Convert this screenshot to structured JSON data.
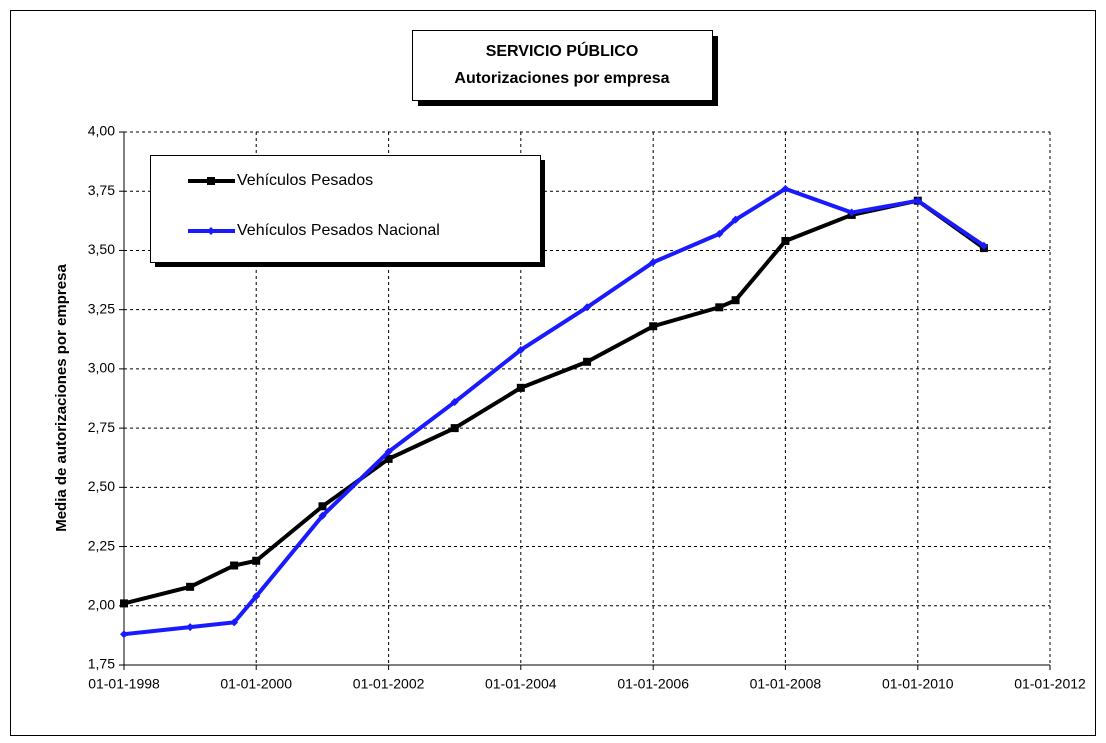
{
  "chart_data": {
    "type": "line",
    "title": [
      "SERVICIO PÚBLICO",
      "Autorizaciones por empresa"
    ],
    "y_label": "Media de autorizaciones por empresa",
    "x": [
      "1998-01-01",
      "1999-01-01",
      "1999-09-01",
      "2000-01-01",
      "2001-01-01",
      "2002-01-01",
      "2003-01-01",
      "2004-01-01",
      "2005-01-01",
      "2006-01-01",
      "2007-01-01",
      "2007-04-01",
      "2008-01-01",
      "2009-01-01",
      "2010-01-01",
      "2011-01-01"
    ],
    "series": [
      {
        "name": "Vehículos Pesados",
        "color": "#000000",
        "values": [
          2.01,
          2.08,
          2.17,
          2.19,
          2.42,
          2.62,
          2.75,
          2.92,
          3.03,
          3.18,
          3.26,
          3.29,
          3.54,
          3.65,
          3.71,
          3.51
        ]
      },
      {
        "name": "Vehículos Pesados Nacional",
        "color": "#1a1aff",
        "values": [
          1.88,
          1.91,
          1.93,
          2.04,
          2.38,
          2.65,
          2.86,
          3.08,
          3.26,
          3.45,
          3.57,
          3.63,
          3.76,
          3.66,
          3.71,
          3.52
        ]
      }
    ],
    "xlim": [
      "1998-01-01",
      "2012-01-01"
    ],
    "xticks": [
      {
        "value": "1998-01-01",
        "label": "01-01-1998"
      },
      {
        "value": "2000-01-01",
        "label": "01-01-2000"
      },
      {
        "value": "2002-01-01",
        "label": "01-01-2002"
      },
      {
        "value": "2004-01-01",
        "label": "01-01-2004"
      },
      {
        "value": "2006-01-01",
        "label": "01-01-2006"
      },
      {
        "value": "2008-01-01",
        "label": "01-01-2008"
      },
      {
        "value": "2010-01-01",
        "label": "01-01-2010"
      },
      {
        "value": "2012-01-01",
        "label": "01-01-2012"
      }
    ],
    "ylim": [
      1.75,
      4.0
    ],
    "yticks": [
      {
        "value": 1.75,
        "label": "1,75"
      },
      {
        "value": 2.0,
        "label": "2,00"
      },
      {
        "value": 2.25,
        "label": "2,25"
      },
      {
        "value": 2.5,
        "label": "2,50"
      },
      {
        "value": 2.75,
        "label": "2,75"
      },
      {
        "value": 3.0,
        "label": "3,00"
      },
      {
        "value": 3.25,
        "label": "3,25"
      },
      {
        "value": 3.5,
        "label": "3,50"
      },
      {
        "value": 3.75,
        "label": "3,75"
      },
      {
        "value": 4.0,
        "label": "4,00"
      }
    ],
    "grid": true,
    "legend": "upper left"
  }
}
